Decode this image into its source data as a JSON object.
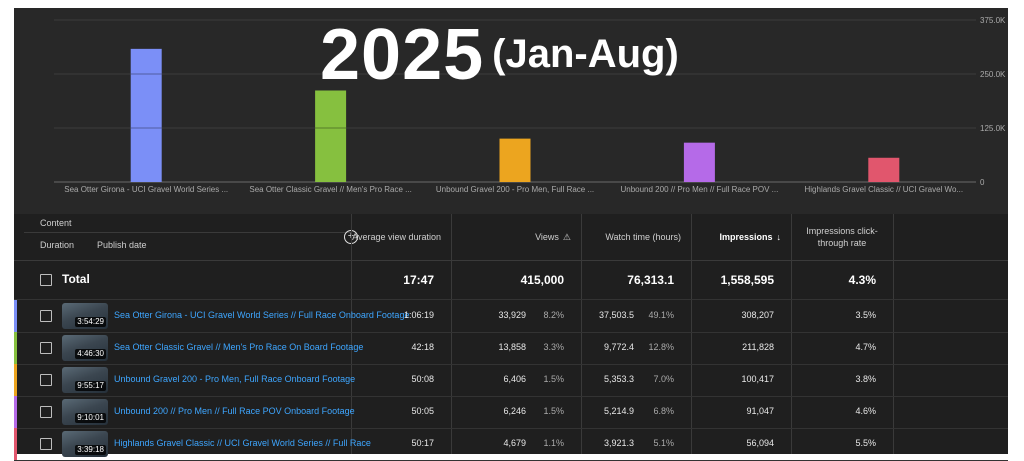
{
  "headline": {
    "year": "2025",
    "range": "(Jan-Aug)"
  },
  "chart_data": {
    "type": "bar",
    "categories": [
      "Sea Otter Girona - UCI Gravel World Series ...",
      "Sea Otter Classic Gravel // Men's Pro Race ...",
      "Unbound Gravel 200 - Pro Men, Full Race ...",
      "Unbound 200 // Pro Men // Full Race POV ...",
      "Highlands Gravel Classic // UCI Gravel Wo..."
    ],
    "values": [
      308207,
      211828,
      100417,
      91047,
      56094
    ],
    "colors": [
      "#7b8ff7",
      "#86c03f",
      "#eca51f",
      "#b56ae8",
      "#e1566d"
    ],
    "ylim": [
      0,
      375000
    ],
    "yticks": [
      0,
      125000,
      250000,
      375000
    ],
    "ytick_labels": [
      "0",
      "125.0K",
      "250.0K",
      "375.0K"
    ],
    "grid": true
  },
  "table": {
    "header": {
      "content": "Content",
      "duration": "Duration",
      "publish_date": "Publish date",
      "avg_view_duration": "Average view duration",
      "views": "Views",
      "watch_time": "Watch time (hours)",
      "impressions": "Impressions",
      "ctr": "Impressions click-through rate"
    },
    "total": {
      "label": "Total",
      "avg_view_duration": "17:47",
      "views": "415,000",
      "watch_time": "76,313.1",
      "impressions": "1,558,595",
      "ctr": "4.3%"
    },
    "rows": [
      {
        "color": "#7b8ff7",
        "duration": "3:54:29",
        "title": "Sea Otter Girona - UCI Gravel World Series // Full Race Onboard Footage",
        "avg": "1:06:19",
        "views": "33,929",
        "views_pct": "8.2%",
        "watch": "37,503.5",
        "watch_pct": "49.1%",
        "impressions": "308,207",
        "ctr": "3.5%"
      },
      {
        "color": "#86c03f",
        "duration": "4:46:30",
        "title": "Sea Otter Classic Gravel // Men's Pro Race On Board Footage",
        "avg": "42:18",
        "views": "13,858",
        "views_pct": "3.3%",
        "watch": "9,772.4",
        "watch_pct": "12.8%",
        "impressions": "211,828",
        "ctr": "4.7%"
      },
      {
        "color": "#eca51f",
        "duration": "9:55:17",
        "title": "Unbound Gravel 200 - Pro Men, Full Race Onboard Footage",
        "avg": "50:08",
        "views": "6,406",
        "views_pct": "1.5%",
        "watch": "5,353.3",
        "watch_pct": "7.0%",
        "impressions": "100,417",
        "ctr": "3.8%"
      },
      {
        "color": "#b56ae8",
        "duration": "9:10:01",
        "title": "Unbound 200 // Pro Men // Full Race POV Onboard Footage",
        "avg": "50:05",
        "views": "6,246",
        "views_pct": "1.5%",
        "watch": "5,214.9",
        "watch_pct": "6.8%",
        "impressions": "91,047",
        "ctr": "4.6%"
      },
      {
        "color": "#e1566d",
        "duration": "3:39:18",
        "title": "Highlands Gravel Classic // UCI Gravel World Series // Full Race",
        "avg": "50:17",
        "views": "4,679",
        "views_pct": "1.1%",
        "watch": "3,921.3",
        "watch_pct": "5.1%",
        "impressions": "56,094",
        "ctr": "5.5%"
      }
    ]
  },
  "icons": {
    "add": "plus-circle-icon",
    "warning": "warning-icon",
    "sort": "arrow-down-icon"
  }
}
